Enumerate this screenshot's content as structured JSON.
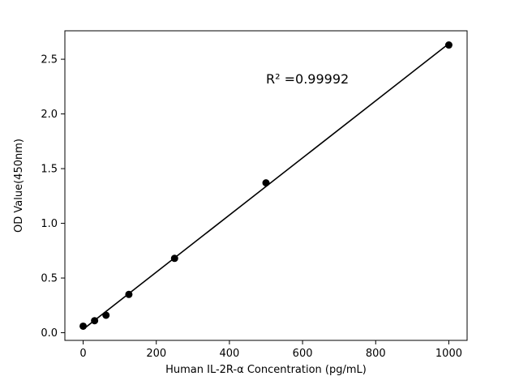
{
  "figure": {
    "background": "#ffffff"
  },
  "chart_data": {
    "type": "scatter",
    "title": "",
    "xlabel": "Human IL-2R-α Concentration (pg/mL)",
    "ylabel": "OD Value(450nm)",
    "annotation": "R² =0.99992",
    "x": [
      0,
      31.25,
      62.5,
      125,
      250,
      500,
      1000
    ],
    "y": [
      0.06,
      0.11,
      0.16,
      0.35,
      0.68,
      1.37,
      2.63
    ],
    "xlim": [
      -50,
      1050
    ],
    "ylim": [
      -0.07,
      2.76
    ],
    "xticks": [
      0,
      200,
      400,
      600,
      800,
      1000
    ],
    "xtick_labels": [
      "0",
      "200",
      "400",
      "600",
      "800",
      "1000"
    ],
    "yticks": [
      0.0,
      0.5,
      1.0,
      1.5,
      2.0,
      2.5
    ],
    "ytick_labels": [
      "0.0",
      "0.5",
      "1.0",
      "1.5",
      "2.0",
      "2.5"
    ],
    "fit_line": true,
    "grid": false,
    "legend": null,
    "marker_color": "#000000",
    "line_color": "#000000",
    "axis_color": "#000000"
  }
}
